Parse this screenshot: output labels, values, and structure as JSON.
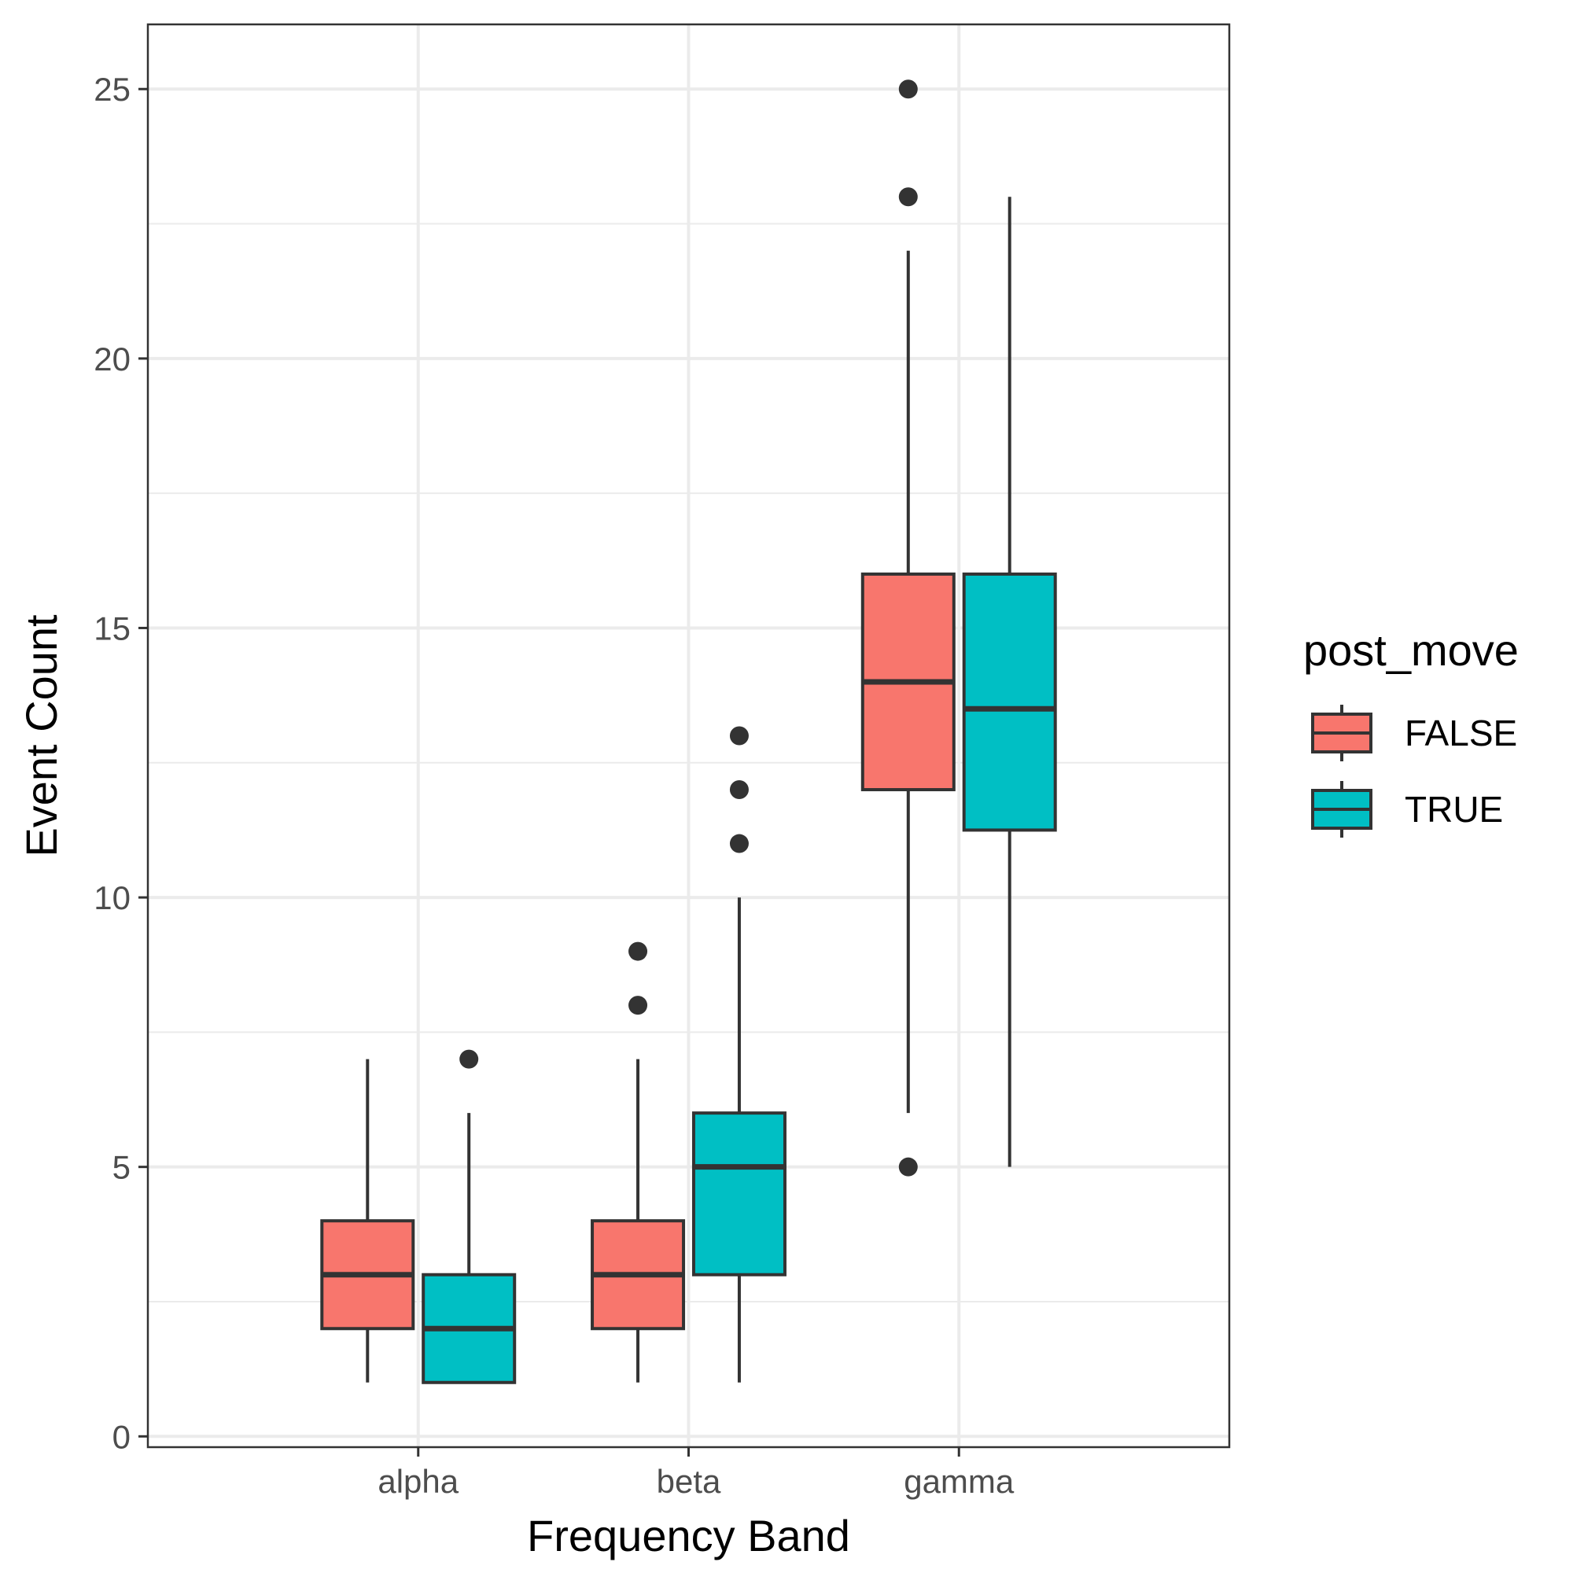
{
  "chart_data": {
    "type": "boxplot",
    "xlabel": "Frequency Band",
    "ylabel": "Event Count",
    "categories": [
      "alpha",
      "beta",
      "gamma"
    ],
    "ylim": [
      -0.2,
      26.2
    ],
    "y_ticks": [
      0,
      5,
      10,
      15,
      20,
      25
    ],
    "y_tick_labels": [
      "0",
      "5",
      "10",
      "15",
      "20",
      "25"
    ],
    "grid": true,
    "legend": {
      "title": "post_move",
      "placement": "right",
      "entries": [
        "FALSE",
        "TRUE"
      ]
    },
    "series": [
      {
        "name": "FALSE",
        "color": "#F8766D",
        "boxes": [
          {
            "category": "alpha",
            "whisker_low": 1,
            "q1": 2,
            "median": 3,
            "q3": 4,
            "whisker_high": 7,
            "outliers": []
          },
          {
            "category": "beta",
            "whisker_low": 1,
            "q1": 2,
            "median": 3,
            "q3": 4,
            "whisker_high": 7,
            "outliers": [
              8,
              9
            ]
          },
          {
            "category": "gamma",
            "whisker_low": 6,
            "q1": 12,
            "median": 14,
            "q3": 16,
            "whisker_high": 22,
            "outliers": [
              5,
              23,
              25
            ]
          }
        ]
      },
      {
        "name": "TRUE",
        "color": "#00BFC4",
        "boxes": [
          {
            "category": "alpha",
            "whisker_low": 1,
            "q1": 1,
            "median": 2,
            "q3": 3,
            "whisker_high": 6,
            "outliers": [
              7
            ]
          },
          {
            "category": "beta",
            "whisker_low": 1,
            "q1": 3,
            "median": 5,
            "q3": 6,
            "whisker_high": 10,
            "outliers": [
              11,
              12,
              13
            ]
          },
          {
            "category": "gamma",
            "whisker_low": 5,
            "q1": 11.25,
            "median": 13.5,
            "q3": 16,
            "whisker_high": 23,
            "outliers": []
          }
        ]
      }
    ],
    "colors": {
      "panel_border": "#333333",
      "grid": "#ebebeb",
      "box_line": "#333333",
      "outlier": "#333333"
    }
  }
}
